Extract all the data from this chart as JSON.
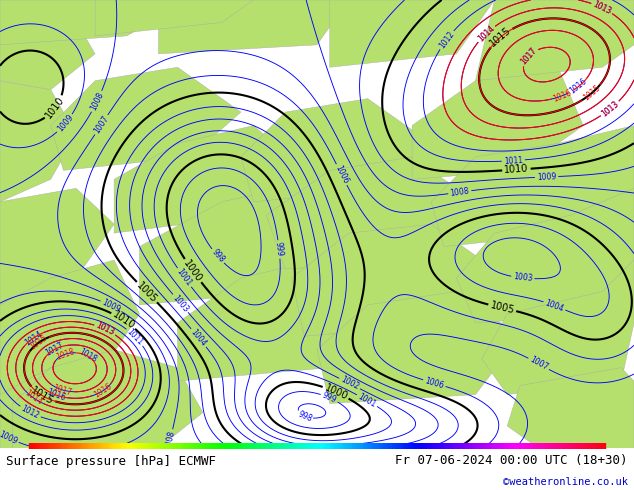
{
  "title_left": "Surface pressure [hPa] ECMWF",
  "title_right": "Fr 07-06-2024 00:00 UTC (18+30)",
  "copyright": "©weatheronline.co.uk",
  "bg_color": "#ffffff",
  "land_color": "#b5e06e",
  "sea_color": "#c8dff0",
  "coast_color": "#aaaaaa",
  "figsize": [
    6.34,
    4.9
  ],
  "dpi": 100,
  "title_fontsize": 9.0,
  "copyright_color": "#0000cc",
  "copyright_fontsize": 7.5
}
